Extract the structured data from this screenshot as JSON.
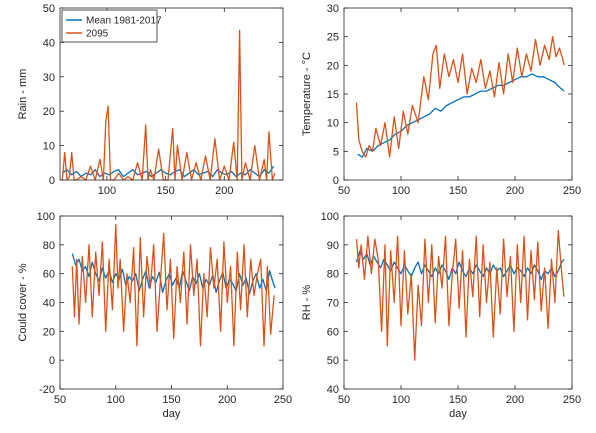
{
  "colors": {
    "mean": "#0072BD",
    "future": "#D95319"
  },
  "chart_data": [
    {
      "type": "line",
      "ylabel": "Rain - mm",
      "xlabel": "",
      "xlim": [
        60,
        250
      ],
      "ylim": [
        0,
        50
      ],
      "xticks": [
        100,
        150,
        200
      ],
      "yticks": [
        0,
        10,
        20,
        30,
        40,
        50
      ],
      "legend": {
        "position": "top-left",
        "entries": [
          "Mean 1981-2017",
          "2095"
        ]
      },
      "series": [
        {
          "name": "Mean 1981-2017",
          "x": [
            62,
            66,
            70,
            74,
            78,
            82,
            86,
            90,
            94,
            98,
            102,
            106,
            110,
            114,
            118,
            122,
            126,
            130,
            134,
            138,
            142,
            146,
            150,
            154,
            158,
            162,
            166,
            170,
            174,
            178,
            182,
            186,
            190,
            194,
            198,
            202,
            206,
            210,
            214,
            218,
            222,
            226,
            230,
            234,
            238,
            242
          ],
          "y": [
            2,
            3,
            1.5,
            2.5,
            1,
            2,
            1.5,
            3,
            1,
            2,
            1.5,
            2.5,
            3,
            1,
            2,
            3,
            1.5,
            2,
            2.5,
            1,
            2,
            3,
            2,
            1.5,
            2.5,
            3,
            1,
            2,
            3,
            1.5,
            2,
            2.5,
            1,
            3,
            2,
            1.5,
            2.5,
            1,
            2,
            1.5,
            3,
            2,
            1,
            3,
            2,
            4
          ]
        },
        {
          "name": "2095",
          "x": [
            62,
            64,
            66,
            68,
            70,
            72,
            74,
            78,
            82,
            86,
            90,
            94,
            97,
            99,
            101,
            103,
            106,
            110,
            114,
            118,
            122,
            126,
            130,
            133,
            135,
            137,
            140,
            144,
            148,
            152,
            156,
            158,
            160,
            164,
            168,
            172,
            176,
            180,
            184,
            188,
            192,
            196,
            200,
            204,
            208,
            211,
            213,
            215,
            218,
            222,
            226,
            230,
            234,
            236,
            238,
            241,
            243
          ],
          "y": [
            0,
            8,
            0,
            1,
            8,
            0,
            0,
            1,
            0,
            4,
            0,
            6,
            0,
            17,
            21.5,
            0,
            0,
            2,
            0,
            1,
            0,
            5,
            0,
            16,
            0,
            3,
            0,
            9,
            0,
            0,
            15,
            0,
            10,
            0,
            8,
            0,
            5,
            0,
            7,
            0,
            12,
            0,
            4,
            0,
            11,
            0,
            43.5,
            0,
            5,
            0,
            10,
            0,
            6,
            0,
            14,
            0,
            2
          ]
        }
      ]
    },
    {
      "type": "line",
      "ylabel": "Temperature - °C",
      "xlabel": "",
      "xlim": [
        50,
        250
      ],
      "ylim": [
        0,
        30
      ],
      "xticks": [
        50,
        100,
        150,
        200,
        250
      ],
      "yticks": [
        0,
        5,
        10,
        15,
        20,
        25,
        30
      ],
      "series": [
        {
          "name": "Mean 1981-2017",
          "x": [
            62,
            66,
            70,
            75,
            80,
            85,
            90,
            95,
            100,
            105,
            110,
            115,
            120,
            125,
            130,
            135,
            140,
            145,
            150,
            155,
            160,
            165,
            170,
            175,
            180,
            185,
            190,
            195,
            200,
            205,
            210,
            215,
            220,
            225,
            230,
            235,
            240,
            243
          ],
          "y": [
            4.5,
            4,
            5.5,
            5,
            6,
            6.5,
            7,
            8,
            8.5,
            9.5,
            10,
            10.5,
            11,
            11.5,
            12.5,
            12,
            13,
            13.5,
            14,
            14.5,
            14.5,
            15,
            15.5,
            15.5,
            16,
            16.5,
            16.5,
            17,
            17.5,
            18,
            18,
            18.5,
            18,
            18,
            17.5,
            17,
            16,
            15.5
          ]
        },
        {
          "name": "2095",
          "x": [
            61,
            63,
            66,
            69,
            72,
            75,
            78,
            82,
            86,
            90,
            94,
            98,
            102,
            106,
            110,
            115,
            120,
            124,
            128,
            131,
            134,
            138,
            142,
            146,
            150,
            154,
            158,
            162,
            166,
            170,
            174,
            178,
            182,
            186,
            190,
            194,
            198,
            202,
            206,
            210,
            214,
            218,
            222,
            226,
            230,
            233,
            236,
            239,
            242,
            243
          ],
          "y": [
            13.5,
            7,
            5,
            4,
            6,
            5,
            9,
            6,
            10,
            4,
            11,
            5.5,
            12,
            8,
            13,
            10,
            18,
            14,
            22,
            23.5,
            16,
            22,
            18,
            21,
            17,
            22,
            15,
            19.5,
            17,
            21,
            16,
            19,
            14.5,
            20.5,
            15,
            22,
            17,
            23,
            18,
            22,
            19,
            24.5,
            20,
            23.5,
            21,
            25,
            21.5,
            23,
            21,
            20
          ]
        }
      ]
    },
    {
      "type": "line",
      "ylabel": "Could cover - %",
      "xlabel": "day",
      "xlim": [
        50,
        250
      ],
      "ylim": [
        -20,
        100
      ],
      "xticks": [
        50,
        100,
        150,
        200,
        250
      ],
      "yticks": [
        -20,
        0,
        20,
        40,
        60,
        80,
        100
      ],
      "series": [
        {
          "name": "Mean 1981-2017",
          "x": [
            61,
            64,
            67,
            70,
            73,
            76,
            79,
            82,
            85,
            88,
            91,
            94,
            97,
            100,
            103,
            106,
            109,
            112,
            115,
            118,
            121,
            124,
            127,
            130,
            133,
            136,
            139,
            142,
            145,
            148,
            151,
            154,
            157,
            160,
            163,
            166,
            169,
            172,
            175,
            178,
            181,
            184,
            187,
            190,
            193,
            196,
            199,
            202,
            205,
            208,
            211,
            214,
            217,
            220,
            223,
            226,
            229,
            232,
            235,
            238,
            241,
            243
          ],
          "y": [
            74,
            66,
            70,
            62,
            65,
            58,
            68,
            60,
            55,
            64,
            57,
            62,
            54,
            60,
            56,
            63,
            52,
            58,
            55,
            60,
            48,
            56,
            62,
            50,
            58,
            54,
            61,
            47,
            55,
            60,
            52,
            57,
            50,
            62,
            55,
            48,
            58,
            53,
            60,
            50,
            56,
            52,
            59,
            47,
            55,
            61,
            50,
            56,
            53,
            48,
            60,
            52,
            57,
            46,
            55,
            60,
            50,
            56,
            48,
            62,
            54,
            50
          ]
        },
        {
          "name": "2095",
          "x": [
            61,
            63,
            65,
            67,
            70,
            73,
            76,
            79,
            82,
            85,
            88,
            91,
            94,
            97,
            100,
            102,
            104,
            107,
            110,
            113,
            116,
            119,
            122,
            125,
            128,
            131,
            134,
            137,
            140,
            143,
            146,
            149,
            152,
            155,
            158,
            161,
            164,
            167,
            170,
            173,
            176,
            179,
            182,
            185,
            188,
            191,
            194,
            197,
            200,
            203,
            206,
            209,
            212,
            215,
            218,
            221,
            224,
            227,
            230,
            233,
            236,
            239,
            242
          ],
          "y": [
            65,
            30,
            70,
            25,
            72,
            40,
            80,
            30,
            75,
            45,
            82,
            20,
            70,
            35,
            94,
            50,
            70,
            20,
            60,
            40,
            78,
            10,
            85,
            30,
            72,
            50,
            80,
            20,
            55,
            88,
            35,
            70,
            15,
            65,
            40,
            75,
            25,
            80,
            45,
            70,
            10,
            60,
            30,
            78,
            50,
            70,
            20,
            82,
            40,
            65,
            10,
            75,
            35,
            80,
            30,
            70,
            45,
            60,
            70,
            10,
            65,
            18,
            45
          ]
        }
      ]
    },
    {
      "type": "line",
      "ylabel": "RH - %",
      "xlabel": "day",
      "xlim": [
        50,
        250
      ],
      "ylim": [
        40,
        100
      ],
      "xticks": [
        50,
        100,
        150,
        200,
        250
      ],
      "yticks": [
        40,
        50,
        60,
        70,
        80,
        90,
        100
      ],
      "series": [
        {
          "name": "Mean 1981-2017",
          "x": [
            61,
            64,
            67,
            70,
            73,
            76,
            79,
            82,
            85,
            88,
            91,
            94,
            97,
            100,
            103,
            106,
            109,
            112,
            115,
            118,
            121,
            124,
            127,
            130,
            133,
            136,
            139,
            142,
            145,
            148,
            151,
            154,
            157,
            160,
            163,
            166,
            169,
            172,
            175,
            178,
            181,
            184,
            187,
            190,
            193,
            196,
            199,
            202,
            205,
            208,
            211,
            214,
            217,
            220,
            223,
            226,
            229,
            232,
            235,
            238,
            241,
            243
          ],
          "y": [
            84,
            88,
            85,
            87,
            83,
            86,
            84,
            82,
            85,
            83,
            81,
            84,
            82,
            80,
            83,
            81,
            79,
            82,
            84,
            80,
            83,
            81,
            79,
            82,
            80,
            83,
            81,
            78,
            82,
            80,
            84,
            81,
            79,
            82,
            80,
            83,
            81,
            79,
            82,
            80,
            83,
            81,
            82,
            79,
            81,
            83,
            80,
            82,
            81,
            79,
            82,
            80,
            83,
            81,
            78,
            81,
            80,
            82,
            79,
            81,
            84,
            85
          ]
        },
        {
          "name": "2095",
          "x": [
            61,
            63,
            65,
            68,
            71,
            74,
            77,
            80,
            83,
            86,
            88,
            91,
            94,
            97,
            100,
            103,
            106,
            109,
            112,
            115,
            118,
            121,
            124,
            127,
            130,
            133,
            136,
            139,
            142,
            145,
            148,
            151,
            154,
            157,
            160,
            163,
            166,
            169,
            172,
            175,
            178,
            181,
            184,
            187,
            190,
            193,
            196,
            199,
            202,
            205,
            208,
            211,
            214,
            217,
            220,
            223,
            226,
            229,
            232,
            235,
            238,
            241,
            243
          ],
          "y": [
            92,
            82,
            90,
            78,
            93,
            80,
            92,
            85,
            60,
            90,
            55,
            88,
            70,
            93,
            62,
            88,
            66,
            80,
            50,
            76,
            62,
            92,
            70,
            90,
            63,
            86,
            75,
            93,
            62,
            80,
            92,
            68,
            88,
            58,
            85,
            72,
            93,
            65,
            90,
            70,
            84,
            58,
            82,
            66,
            92,
            72,
            86,
            60,
            90,
            70,
            93,
            64,
            88,
            71,
            91,
            67,
            82,
            61,
            85,
            70,
            95,
            80,
            72
          ]
        }
      ]
    }
  ]
}
